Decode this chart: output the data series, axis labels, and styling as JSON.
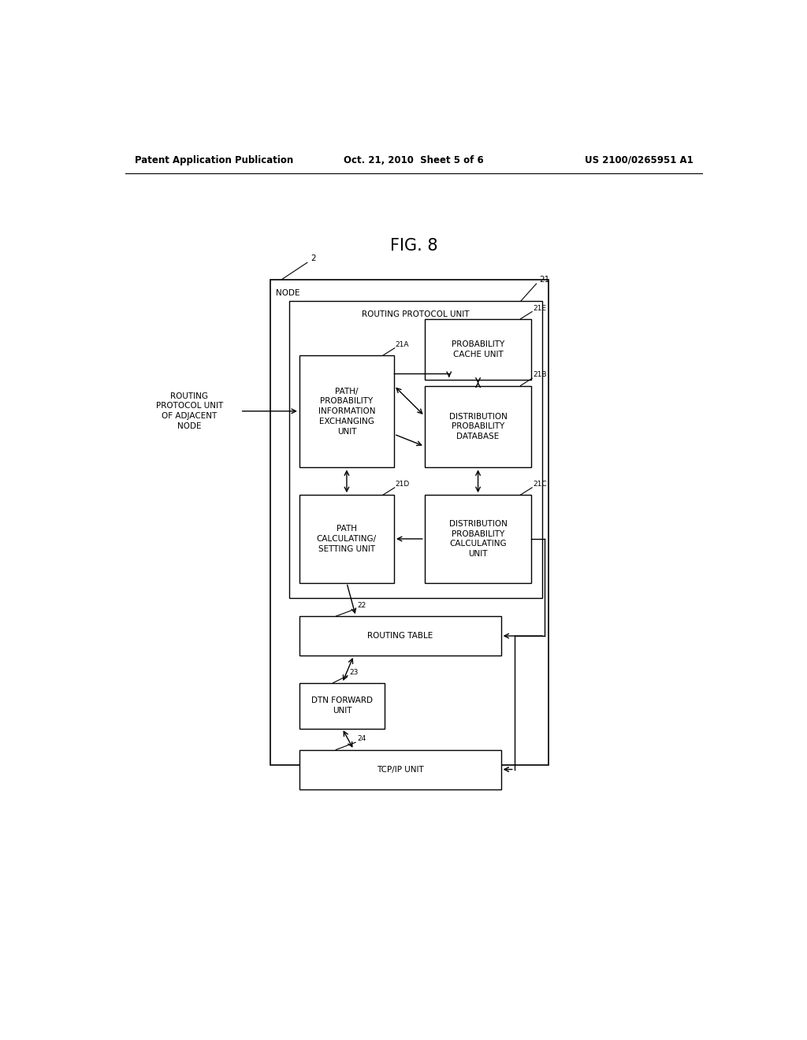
{
  "bg_color": "#ffffff",
  "header_left": "Patent Application Publication",
  "header_center": "Oct. 21, 2010  Sheet 5 of 6",
  "header_right": "US 2100/0265951 A1",
  "fig_title": "FIG. 8",
  "node_label": "NODE",
  "node_id": "2",
  "rpu_label": "ROUTING PROTOCOL UNIT",
  "rpu_id": "21",
  "box_21A_lines": [
    "PATH/",
    "PROBABILITY",
    "INFORMATION",
    "EXCHANGING",
    "UNIT"
  ],
  "box_21A_id": "21A",
  "box_21B_lines": [
    "DISTRIBUTION",
    "PROBABILITY",
    "DATABASE"
  ],
  "box_21B_id": "21B",
  "box_21C_lines": [
    "DISTRIBUTION",
    "PROBABILITY",
    "CALCULATING",
    "UNIT"
  ],
  "box_21C_id": "21C",
  "box_21D_lines": [
    "PATH",
    "CALCULATING/",
    "SETTING UNIT"
  ],
  "box_21D_id": "21D",
  "box_21E_lines": [
    "PROBABILITY",
    "CACHE UNIT"
  ],
  "box_21E_id": "21E",
  "box_22_lines": [
    "ROUTING TABLE"
  ],
  "box_22_id": "22",
  "box_23_lines": [
    "DTN FORWARD",
    "UNIT"
  ],
  "box_23_id": "23",
  "box_24_lines": [
    "TCP/IP UNIT"
  ],
  "box_24_id": "24",
  "adj_node_lines": [
    "ROUTING",
    "PROTOCOL UNIT",
    "OF ADJACENT",
    "NODE"
  ],
  "font_size_box": 7.5,
  "font_size_header": 8.5,
  "font_size_title": 15
}
